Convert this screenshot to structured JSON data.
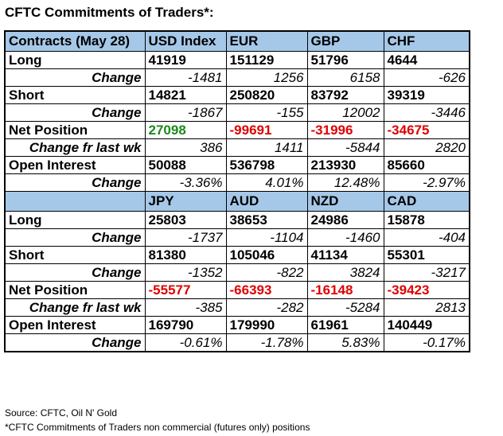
{
  "title": "CFTC Commitments of Traders*:",
  "section1": {
    "header": [
      "Contracts (May 28)",
      "USD Index",
      "EUR",
      "GBP",
      "CHF"
    ],
    "long": {
      "label": "Long",
      "values": [
        "41919",
        "151129",
        "51796",
        "4644"
      ]
    },
    "long_change": {
      "label": "Change",
      "values": [
        "-1481",
        "1256",
        "6158",
        "-626"
      ]
    },
    "short": {
      "label": "Short",
      "values": [
        "14821",
        "250820",
        "83792",
        "39319"
      ]
    },
    "short_change": {
      "label": "Change",
      "values": [
        "-1867",
        "-155",
        "12002",
        "-3446"
      ]
    },
    "net": {
      "label": "Net Position",
      "values": [
        "27098",
        "-99691",
        "-31996",
        "-34675"
      ]
    },
    "net_change": {
      "label": "Change fr last wk",
      "values": [
        "386",
        "1411",
        "-5844",
        "2820"
      ]
    },
    "oi": {
      "label": "Open Interest",
      "values": [
        "50088",
        "536798",
        "213930",
        "85660"
      ]
    },
    "oi_change": {
      "label": "Change",
      "values": [
        "-3.36%",
        "4.01%",
        "12.48%",
        "-2.97%"
      ]
    }
  },
  "section2": {
    "header": [
      "",
      "JPY",
      "AUD",
      "NZD",
      "CAD"
    ],
    "long": {
      "label": "Long",
      "values": [
        "25803",
        "38653",
        "24986",
        "15878"
      ]
    },
    "long_change": {
      "label": "Change",
      "values": [
        "-1737",
        "-1104",
        "-1460",
        "-404"
      ]
    },
    "short": {
      "label": "Short",
      "values": [
        "81380",
        "105046",
        "41134",
        "55301"
      ]
    },
    "short_change": {
      "label": "Change",
      "values": [
        "-1352",
        "-822",
        "3824",
        "-3217"
      ]
    },
    "net": {
      "label": "Net Position",
      "values": [
        "-55577",
        "-66393",
        "-16148",
        "-39423"
      ]
    },
    "net_change": {
      "label": "Change fr last wk",
      "values": [
        "-385",
        "-282",
        "-5284",
        "2813"
      ]
    },
    "oi": {
      "label": "Open Interest",
      "values": [
        "169790",
        "179990",
        "61961",
        "140449"
      ]
    },
    "oi_change": {
      "label": "Change",
      "values": [
        "-0.61%",
        "-1.78%",
        "5.83%",
        "-0.17%"
      ]
    }
  },
  "colors": {
    "header_bg": "#a6c8e8",
    "positive": "#1a8a1a",
    "negative": "#e00000"
  },
  "footer": {
    "source": "Source: CFTC, Oil N' Gold",
    "note": "*CFTC Commitments of Traders non commercial (futures only) positions"
  }
}
